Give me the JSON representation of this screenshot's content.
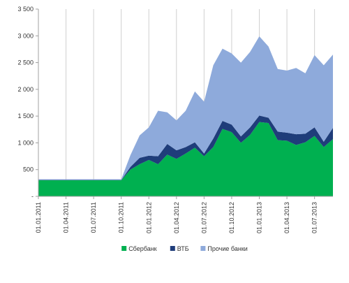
{
  "chart_data": {
    "type": "area",
    "stacked": true,
    "title": "",
    "xlabel": "",
    "ylabel": "",
    "ylim": [
      0,
      3500
    ],
    "y_ticks": [
      {
        "value": 0,
        "label": "-"
      },
      {
        "value": 500,
        "label": "500"
      },
      {
        "value": 1000,
        "label": "1 000"
      },
      {
        "value": 1500,
        "label": "1 500"
      },
      {
        "value": 2000,
        "label": "2 000"
      },
      {
        "value": 2500,
        "label": "2 500"
      },
      {
        "value": 3000,
        "label": "3 000"
      },
      {
        "value": 3500,
        "label": "3 500"
      }
    ],
    "grid": "vertical",
    "legend_position": "bottom",
    "x_tick_labels": [
      "01.01.2011",
      "01.04.2011",
      "01.07.2011",
      "01.10.2011",
      "01.01.2012",
      "01.04.2012",
      "01.07.2012",
      "01.10.2012",
      "01.01.2013",
      "01.04.2013",
      "01.07.2013"
    ],
    "x_tick_every": 3,
    "x": [
      "2011-01",
      "2011-02",
      "2011-03",
      "2011-04",
      "2011-05",
      "2011-06",
      "2011-07",
      "2011-08",
      "2011-09",
      "2011-10",
      "2011-11",
      "2011-12",
      "2012-01",
      "2012-02",
      "2012-03",
      "2012-04",
      "2012-05",
      "2012-06",
      "2012-07",
      "2012-08",
      "2012-09",
      "2012-10",
      "2012-11",
      "2012-12",
      "2013-01",
      "2013-02",
      "2013-03",
      "2013-04",
      "2013-05",
      "2013-06",
      "2013-07",
      "2013-08",
      "2013-09"
    ],
    "series": [
      {
        "name": "Сбербанк",
        "color": "#00b050",
        "values": [
          300,
          300,
          300,
          300,
          300,
          300,
          300,
          300,
          300,
          300,
          500,
          600,
          680,
          600,
          780,
          700,
          800,
          910,
          750,
          920,
          1260,
          1200,
          1000,
          1150,
          1390,
          1370,
          1050,
          1040,
          960,
          1010,
          1130,
          920,
          1070
        ]
      },
      {
        "name": "ВТБ",
        "color": "#1f3d7a",
        "values": [
          5,
          5,
          5,
          5,
          5,
          5,
          5,
          5,
          5,
          5,
          50,
          120,
          80,
          150,
          200,
          160,
          120,
          100,
          50,
          160,
          150,
          140,
          120,
          140,
          120,
          100,
          160,
          150,
          200,
          160,
          160,
          100,
          210
        ]
      },
      {
        "name": "Прочие банки",
        "color": "#8eaadb",
        "values": [
          15,
          15,
          15,
          15,
          15,
          15,
          15,
          15,
          15,
          15,
          220,
          420,
          530,
          850,
          590,
          560,
          680,
          950,
          970,
          1370,
          1350,
          1330,
          1380,
          1410,
          1480,
          1330,
          1170,
          1160,
          1240,
          1130,
          1350,
          1430,
          1370
        ]
      }
    ]
  }
}
